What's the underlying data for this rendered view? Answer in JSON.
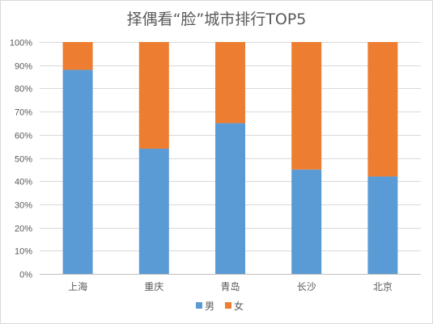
{
  "chart_data": {
    "type": "bar",
    "stacked": "percent",
    "title": "择偶看“脸”城市排行TOP5",
    "xlabel": "",
    "ylabel": "",
    "categories": [
      "上海",
      "重庆",
      "青岛",
      "长沙",
      "北京"
    ],
    "series": [
      {
        "name": "男",
        "color": "#5b9bd5",
        "values": [
          88,
          54,
          65,
          45,
          42
        ]
      },
      {
        "name": "女",
        "color": "#ed7d31",
        "values": [
          12,
          46,
          35,
          55,
          58
        ]
      }
    ],
    "ylim": [
      0,
      100
    ],
    "yticks": [
      "0%",
      "10%",
      "20%",
      "30%",
      "40%",
      "50%",
      "60%",
      "70%",
      "80%",
      "90%",
      "100%"
    ],
    "grid": true,
    "legend_position": "bottom"
  }
}
